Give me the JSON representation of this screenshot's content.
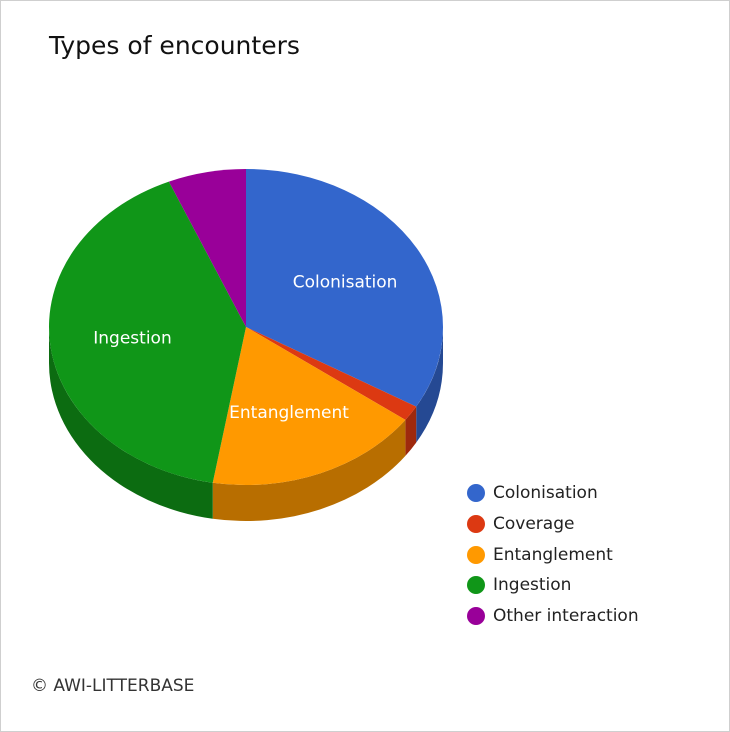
{
  "chart_data": {
    "type": "pie",
    "title": "Types of encounters",
    "categories": [
      "Colonisation",
      "Coverage",
      "Entanglement",
      "Ingestion",
      "Other interaction"
    ],
    "values": [
      33.4,
      1.6,
      17.7,
      40.9,
      6.4
    ],
    "colors": [
      "#3366cc",
      "#dc3912",
      "#ff9900",
      "#109618",
      "#990099"
    ],
    "slice_labels": [
      "Colonisation",
      "",
      "Entanglement",
      "Ingestion",
      ""
    ],
    "legend_position": "bottom-right",
    "style": "3d"
  },
  "footer": {
    "credit": "© AWI-LITTERBASE"
  }
}
